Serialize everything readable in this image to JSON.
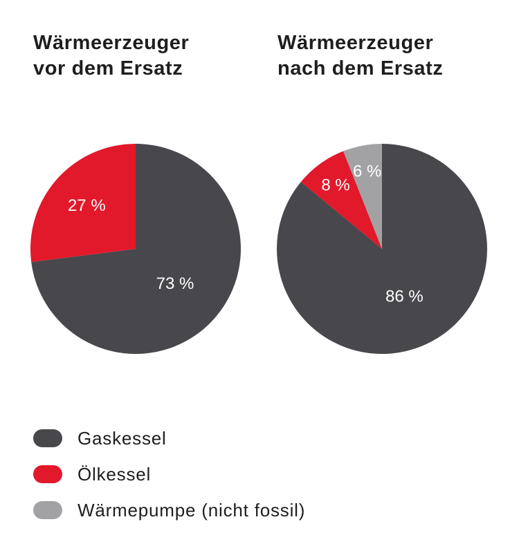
{
  "colors": {
    "gaskessel": "#48484c",
    "oelkessel": "#e2182b",
    "waermepumpe": "#a2a2a4"
  },
  "chart_data": [
    {
      "type": "pie",
      "title_lines": [
        "Wärmeerzeuger",
        "vor dem Ersatz"
      ],
      "slices": [
        {
          "name": "Gaskessel",
          "value": 73,
          "label": "73 %",
          "color_key": "gaskessel"
        },
        {
          "name": "Ölkessel",
          "value": 27,
          "label": "27 %",
          "color_key": "oelkessel"
        }
      ]
    },
    {
      "type": "pie",
      "title_lines": [
        "Wärmeerzeuger",
        "nach dem Ersatz"
      ],
      "slices": [
        {
          "name": "Gaskessel",
          "value": 86,
          "label": "86 %",
          "color_key": "gaskessel"
        },
        {
          "name": "Ölkessel",
          "value": 8,
          "label": "8 %",
          "color_key": "oelkessel"
        },
        {
          "name": "Wärmepumpe (nicht fossil)",
          "value": 6,
          "label": "6 %",
          "color_key": "waermepumpe"
        }
      ]
    }
  ],
  "legend": [
    {
      "label": "Gaskessel",
      "color_key": "gaskessel"
    },
    {
      "label": "Ölkessel",
      "color_key": "oelkessel"
    },
    {
      "label": "Wärmepumpe (nicht fossil)",
      "color_key": "waermepumpe"
    }
  ]
}
